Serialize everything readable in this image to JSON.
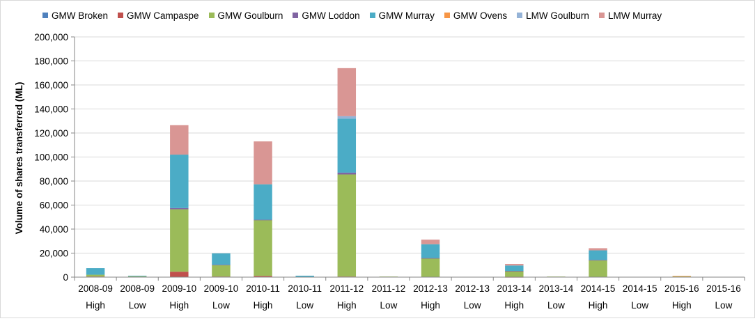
{
  "chart_data": {
    "type": "bar",
    "stacked": true,
    "ylabel": "Volume of shares transferred (ML)",
    "ylim": [
      0,
      200000
    ],
    "yticks": [
      0,
      20000,
      40000,
      60000,
      80000,
      100000,
      120000,
      140000,
      160000,
      180000,
      200000
    ],
    "ytick_labels": [
      "0",
      "20,000",
      "40,000",
      "60,000",
      "80,000",
      "100,000",
      "120,000",
      "140,000",
      "160,000",
      "180,000",
      "200,000"
    ],
    "grid": "horizontal",
    "legend_position": "top",
    "categories": [
      [
        "2008-09",
        "High"
      ],
      [
        "2008-09",
        "Low"
      ],
      [
        "2009-10",
        "High"
      ],
      [
        "2009-10",
        "Low"
      ],
      [
        "2010-11",
        "High"
      ],
      [
        "2010-11",
        "Low"
      ],
      [
        "2011-12",
        "High"
      ],
      [
        "2011-12",
        "Low"
      ],
      [
        "2012-13",
        "High"
      ],
      [
        "2012-13",
        "Low"
      ],
      [
        "2013-14",
        "High"
      ],
      [
        "2013-14",
        "Low"
      ],
      [
        "2014-15",
        "High"
      ],
      [
        "2014-15",
        "Low"
      ],
      [
        "2015-16",
        "High"
      ],
      [
        "2015-16",
        "Low"
      ]
    ],
    "series": [
      {
        "name": "GMW Broken",
        "color": "#4F81BD",
        "values": [
          0,
          0,
          0,
          0,
          0,
          0,
          0,
          0,
          0,
          0,
          0,
          0,
          0,
          0,
          0,
          0
        ]
      },
      {
        "name": "GMW Campaspe",
        "color": "#C0504D",
        "values": [
          500,
          0,
          4500,
          500,
          1000,
          0,
          500,
          0,
          200,
          0,
          100,
          0,
          200,
          0,
          0,
          0
        ]
      },
      {
        "name": "GMW Goulburn",
        "color": "#9BBB59",
        "values": [
          1500,
          800,
          52000,
          9500,
          46500,
          200,
          85000,
          500,
          15500,
          0,
          5000,
          500,
          14000,
          0,
          700,
          0
        ]
      },
      {
        "name": "GMW Loddon",
        "color": "#8064A2",
        "values": [
          0,
          0,
          1000,
          300,
          300,
          0,
          1500,
          0,
          200,
          0,
          100,
          0,
          100,
          0,
          0,
          0
        ]
      },
      {
        "name": "GMW Murray",
        "color": "#4BACC6",
        "values": [
          5500,
          400,
          44500,
          9500,
          29500,
          1000,
          45000,
          0,
          11500,
          0,
          4500,
          0,
          8000,
          0,
          0,
          0
        ]
      },
      {
        "name": "GMW Ovens",
        "color": "#F79646",
        "values": [
          0,
          0,
          0,
          0,
          0,
          0,
          0,
          0,
          0,
          0,
          0,
          0,
          0,
          0,
          300,
          0
        ]
      },
      {
        "name": "LMW Goulburn",
        "color": "#95B3D7",
        "values": [
          0,
          0,
          0,
          0,
          0,
          0,
          2000,
          0,
          0,
          0,
          0,
          0,
          0,
          0,
          0,
          0
        ]
      },
      {
        "name": "LMW Murray",
        "color": "#D99694",
        "values": [
          0,
          0,
          24500,
          0,
          35700,
          0,
          40000,
          0,
          3800,
          0,
          1300,
          0,
          1800,
          0,
          0,
          0
        ]
      }
    ]
  }
}
